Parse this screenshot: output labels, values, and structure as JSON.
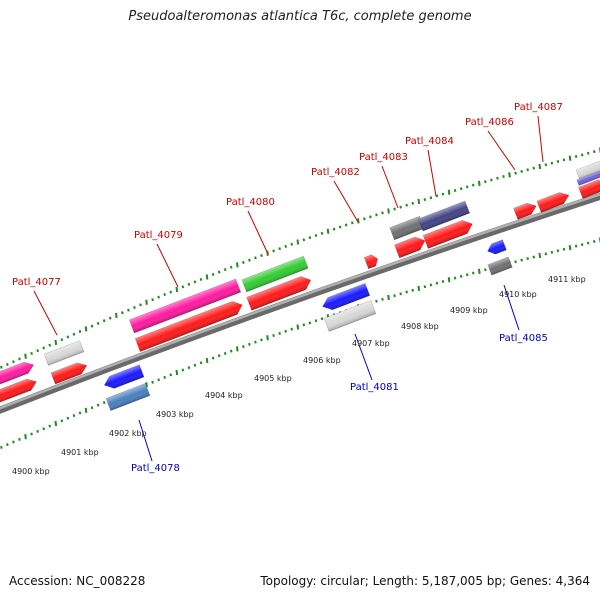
{
  "title": "Pseudoalteromonas atlantica T6c, complete genome",
  "footer": {
    "accession": "Accession: NC_008228",
    "summary": "Topology: circular; Length: 5,187,005 bp; Genes: 4,364"
  },
  "colors": {
    "backbone": "#8c8c8c",
    "tick": "#1f8a1f",
    "label_forward": "#cc0000",
    "label_reverse": "#0000cc",
    "red": "#ff1a1a",
    "magenta": "#ff1aa0",
    "green": "#33cc33",
    "blue": "#1a1aff",
    "steel": "#4a7fbf",
    "lightgray": "#d8d8d8",
    "darkgray": "#707070",
    "navy": "#444488",
    "violet": "#7060e0"
  },
  "ruler_ticks": [
    {
      "label": "4900 kbp"
    },
    {
      "label": "4901 kbp"
    },
    {
      "label": "4902 kbp"
    },
    {
      "label": "4903 kbp"
    },
    {
      "label": "4904 kbp"
    },
    {
      "label": "4905 kbp"
    },
    {
      "label": "4906 kbp"
    },
    {
      "label": "4907 kbp"
    },
    {
      "label": "4908 kbp"
    },
    {
      "label": "4909 kbp"
    },
    {
      "label": "4910 kbp"
    },
    {
      "label": "4911 kbp"
    }
  ],
  "gene_labels_forward": [
    {
      "text": "Patl_4077"
    },
    {
      "text": "Patl_4079"
    },
    {
      "text": "Patl_4080"
    },
    {
      "text": "Patl_4082"
    },
    {
      "text": "Patl_4083"
    },
    {
      "text": "Patl_4084"
    },
    {
      "text": "Patl_4086"
    },
    {
      "text": "Patl_4087"
    }
  ],
  "gene_labels_reverse": [
    {
      "text": "Patl_4078"
    },
    {
      "text": "Patl_4081"
    },
    {
      "text": "Patl_4085"
    }
  ]
}
